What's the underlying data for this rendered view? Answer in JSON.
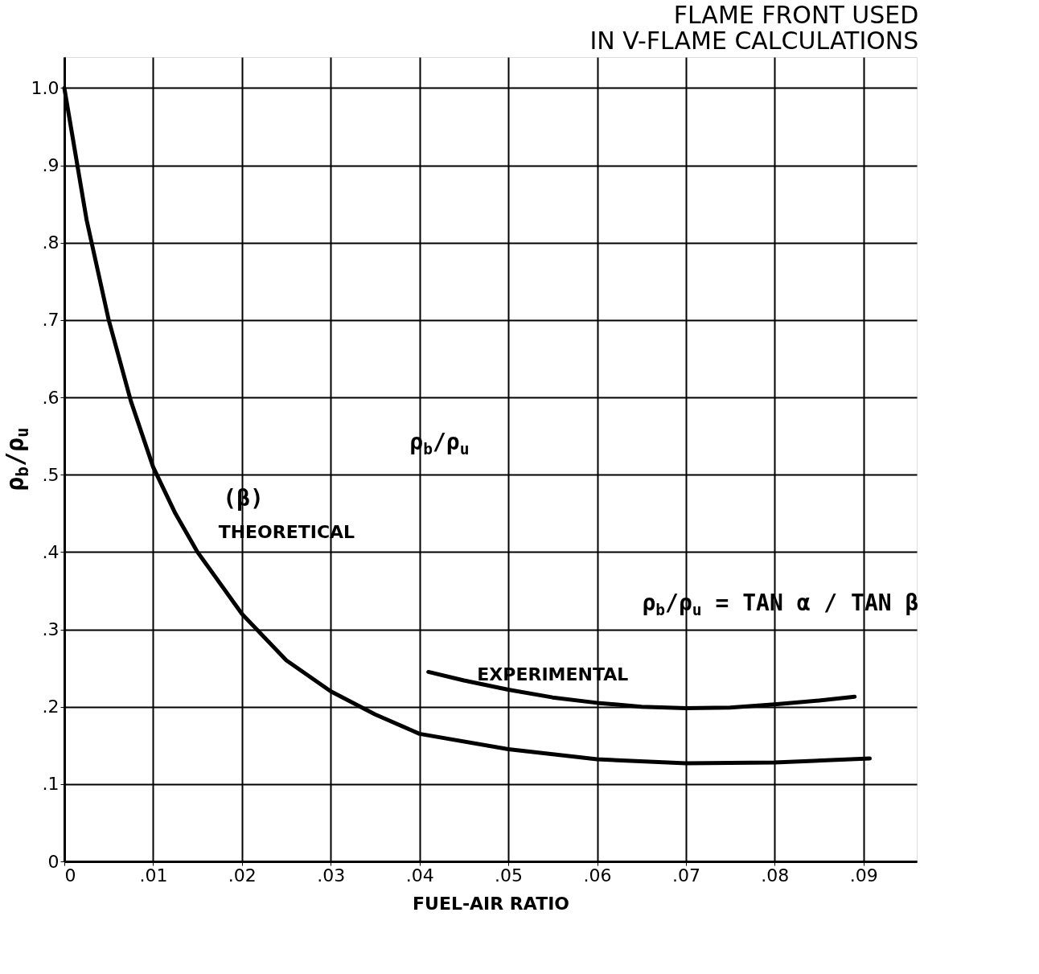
{
  "chart_data": {
    "type": "line",
    "title": "FLAME FRONT USED\nIN V-FLAME CALCULATIONS",
    "xlabel": "FUEL-AIR RATIO",
    "ylabel": "ρ$_{b}$/ρ$_{u}$",
    "series": [
      {
        "name": "THEORETICAL",
        "color": "#000000",
        "x": [
          0,
          0.0025,
          0.005,
          0.0075,
          0.01,
          0.0125,
          0.015,
          0.02,
          0.025,
          0.03,
          0.035,
          0.04,
          0.05,
          0.06,
          0.07,
          0.08,
          0.0907
        ],
        "values": [
          1.0,
          0.83,
          0.7,
          0.595,
          0.51,
          0.45,
          0.4,
          0.32,
          0.26,
          0.22,
          0.19,
          0.165,
          0.145,
          0.132,
          0.127,
          0.128,
          0.133
        ]
      },
      {
        "name": "EXPERIMENTAL",
        "color": "#000000",
        "x": [
          0.041,
          0.045,
          0.05,
          0.055,
          0.06,
          0.065,
          0.07,
          0.075,
          0.08,
          0.085,
          0.089
        ],
        "values": [
          0.245,
          0.234,
          0.222,
          0.212,
          0.205,
          0.2,
          0.198,
          0.199,
          0.203,
          0.208,
          0.213
        ]
      }
    ],
    "annotations": [
      "(β)",
      "ρ$_{b}$/ρ$_{u}$",
      "ρ$_{b}$/ρ$_{u}$ = TAN α / TAN β"
    ],
    "xlim": [
      0,
      0.096
    ],
    "ylim": [
      0,
      1.04
    ],
    "xticks": [
      0,
      {
        "value": 0.01,
        "label": ".01"
      },
      {
        "value": 0.02,
        "label": ".02"
      },
      {
        "value": 0.03,
        "label": ".03"
      },
      {
        "value": 0.04,
        "label": ".04"
      },
      {
        "value": 0.05,
        "label": ".05"
      },
      {
        "value": 0.06,
        "label": ".06"
      },
      {
        "value": 0.07,
        "label": ".07"
      },
      {
        "value": 0.08,
        "label": ".08"
      },
      {
        "value": 0.09,
        "label": ".09"
      }
    ],
    "yticks": [
      0,
      {
        "value": 0.1,
        "label": ".1"
      },
      {
        "value": 0.2,
        "label": ".2"
      },
      {
        "value": 0.3,
        "label": ".3"
      },
      {
        "value": 0.4,
        "label": ".4"
      },
      {
        "value": 0.5,
        "label": ".5"
      },
      {
        "value": 0.6,
        "label": ".6"
      },
      {
        "value": 0.7,
        "label": ".7"
      },
      {
        "value": 0.8,
        "label": ".8"
      },
      {
        "value": 0.9,
        "label": ".9"
      },
      {
        "value": 1,
        "label": "1.0"
      }
    ],
    "grid": true,
    "marker": "none",
    "line_style": "solid"
  }
}
